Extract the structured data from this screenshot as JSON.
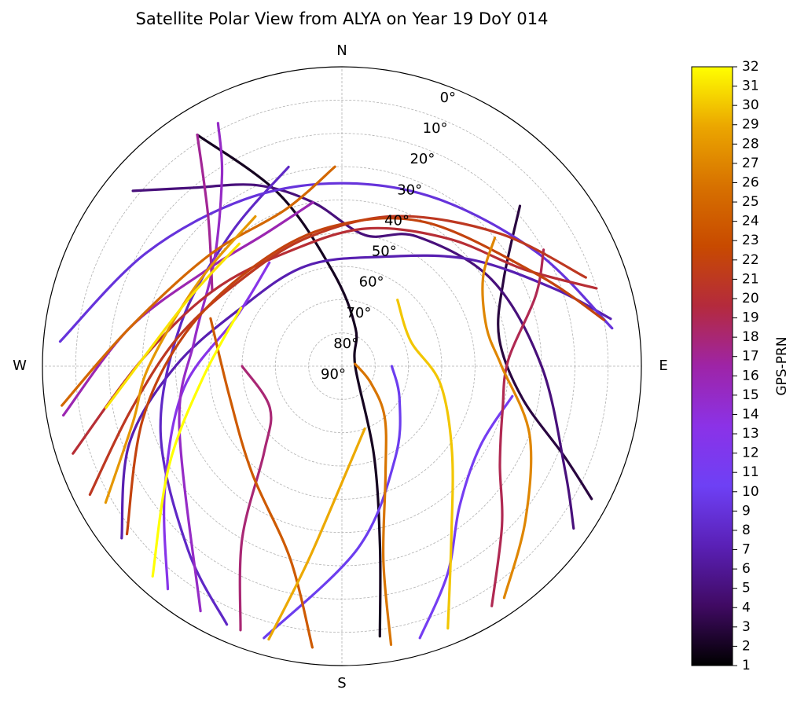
{
  "chart_data": {
    "type": "scatter",
    "projection": "polar",
    "title": "Satellite Polar View from ALYA on Year 19 DoY 014",
    "directions": [
      "N",
      "E",
      "S",
      "W"
    ],
    "radial_axis": {
      "quantity": "elevation",
      "ticks": [
        "0°",
        "10°",
        "20°",
        "30°",
        "40°",
        "50°",
        "60°",
        "70°",
        "80°",
        "90°"
      ],
      "range": [
        0,
        90
      ],
      "grid": true
    },
    "angular_axis": {
      "quantity": "azimuth",
      "zero": "N",
      "direction": "clockwise",
      "range": [
        0,
        360
      ],
      "grid": true
    },
    "colorbar": {
      "label": "GPS-PRN",
      "colormap": "gnuplot",
      "range": [
        1,
        32
      ],
      "ticks": [
        1,
        2,
        3,
        4,
        5,
        6,
        7,
        8,
        9,
        10,
        11,
        12,
        13,
        14,
        15,
        16,
        17,
        18,
        19,
        20,
        21,
        22,
        23,
        24,
        25,
        26,
        27,
        28,
        29,
        30,
        31,
        32
      ]
    },
    "series": [
      {
        "prn": 2,
        "points": [
          [
            328,
            8
          ],
          [
            340,
            35
          ],
          [
            355,
            62
          ],
          [
            20,
            78
          ],
          [
            90,
            86
          ],
          [
            160,
            62
          ],
          [
            168,
            35
          ],
          [
            172,
            8
          ]
        ]
      },
      {
        "prn": 3,
        "points": [
          [
            48,
            18
          ],
          [
            62,
            35
          ],
          [
            80,
            42
          ],
          [
            100,
            35
          ],
          [
            112,
            18
          ],
          [
            118,
            5
          ]
        ]
      },
      {
        "prn": 5,
        "points": [
          [
            310,
            8
          ],
          [
            320,
            20
          ],
          [
            335,
            30
          ],
          [
            350,
            40
          ],
          [
            10,
            50
          ],
          [
            30,
            45
          ],
          [
            60,
            38
          ],
          [
            90,
            30
          ],
          [
            115,
            16
          ],
          [
            125,
            5
          ]
        ]
      },
      {
        "prn": 7,
        "points": [
          [
            232,
            6
          ],
          [
            250,
            22
          ],
          [
            270,
            40
          ],
          [
            300,
            55
          ],
          [
            340,
            58
          ],
          [
            20,
            55
          ],
          [
            50,
            40
          ],
          [
            70,
            22
          ],
          [
            80,
            8
          ]
        ]
      },
      {
        "prn": 8,
        "points": [
          [
            204,
            5
          ],
          [
            220,
            18
          ],
          [
            250,
            32
          ],
          [
            285,
            40
          ],
          [
            320,
            38
          ],
          [
            345,
            28
          ]
        ]
      },
      {
        "prn": 9,
        "points": [
          [
            275,
            5
          ],
          [
            300,
            22
          ],
          [
            330,
            32
          ],
          [
            360,
            35
          ],
          [
            30,
            32
          ],
          [
            60,
            22
          ],
          [
            82,
            8
          ]
        ]
      },
      {
        "prn": 10,
        "points": [
          [
            196,
            5
          ],
          [
            175,
            35
          ],
          [
            150,
            58
          ],
          [
            120,
            70
          ],
          [
            90,
            75
          ]
        ]
      },
      {
        "prn": 11,
        "points": [
          [
            164,
            5
          ],
          [
            153,
            20
          ],
          [
            140,
            35
          ],
          [
            120,
            42
          ],
          [
            100,
            38
          ]
        ]
      },
      {
        "prn": 13,
        "points": [
          [
            218,
            5
          ],
          [
            235,
            25
          ],
          [
            262,
            42
          ],
          [
            295,
            55
          ],
          [
            325,
            52
          ]
        ]
      },
      {
        "prn": 15,
        "points": [
          [
            210,
            5
          ],
          [
            250,
            38
          ],
          [
            280,
            45
          ],
          [
            310,
            40
          ],
          [
            328,
            22
          ],
          [
            333,
            8
          ]
        ]
      },
      {
        "prn": 16,
        "points": [
          [
            260,
            5
          ],
          [
            280,
            25
          ],
          [
            305,
            40
          ],
          [
            330,
            44
          ],
          [
            350,
            40
          ]
        ]
      },
      {
        "prn": 17,
        "points": [
          [
            328,
            8
          ],
          [
            318,
            30
          ],
          [
            300,
            45
          ]
        ]
      },
      {
        "prn": 18,
        "points": [
          [
            201,
            5
          ],
          [
            210,
            30
          ],
          [
            222,
            55
          ],
          [
            240,
            65
          ],
          [
            270,
            60
          ]
        ]
      },
      {
        "prn": 19,
        "points": [
          [
            148,
            5
          ],
          [
            135,
            22
          ],
          [
            122,
            34
          ],
          [
            105,
            40
          ],
          [
            88,
            40
          ],
          [
            70,
            28
          ],
          [
            60,
            20
          ]
        ]
      },
      {
        "prn": 20,
        "points": [
          [
            252,
            5
          ],
          [
            272,
            30
          ],
          [
            300,
            45
          ],
          [
            335,
            52
          ],
          [
            10,
            48
          ],
          [
            40,
            40
          ],
          [
            62,
            28
          ],
          [
            73,
            10
          ]
        ]
      },
      {
        "prn": 21,
        "points": [
          [
            243,
            5
          ],
          [
            258,
            25
          ],
          [
            280,
            40
          ],
          [
            310,
            50
          ],
          [
            345,
            50
          ],
          [
            20,
            42
          ],
          [
            50,
            28
          ],
          [
            70,
            12
          ]
        ]
      },
      {
        "prn": 22,
        "points": [
          [
            232,
            8
          ],
          [
            255,
            28
          ],
          [
            282,
            42
          ],
          [
            318,
            50
          ],
          [
            355,
            48
          ],
          [
            30,
            40
          ],
          [
            65,
            25
          ],
          [
            80,
            10
          ]
        ]
      },
      {
        "prn": 24,
        "points": [
          [
            186,
            5
          ],
          [
            195,
            30
          ],
          [
            220,
            48
          ],
          [
            255,
            55
          ],
          [
            290,
            48
          ]
        ]
      },
      {
        "prn": 25,
        "points": [
          [
            262,
            5
          ],
          [
            280,
            25
          ],
          [
            310,
            38
          ],
          [
            340,
            40
          ],
          [
            358,
            30
          ]
        ]
      },
      {
        "prn": 26,
        "points": [
          [
            170,
            5
          ],
          [
            168,
            30
          ],
          [
            158,
            55
          ],
          [
            140,
            70
          ],
          [
            120,
            80
          ],
          [
            80,
            86
          ]
        ]
      },
      {
        "prn": 27,
        "points": [
          [
            50,
            30
          ],
          [
            58,
            40
          ],
          [
            75,
            45
          ],
          [
            90,
            42
          ],
          [
            110,
            30
          ],
          [
            130,
            18
          ],
          [
            145,
            5
          ]
        ]
      },
      {
        "prn": 28,
        "points": [
          [
            240,
            8
          ],
          [
            255,
            25
          ],
          [
            270,
            32
          ],
          [
            300,
            40
          ],
          [
            330,
            38
          ]
        ]
      },
      {
        "prn": 29,
        "points": [
          [
            195,
            5
          ],
          [
            190,
            30
          ],
          [
            180,
            55
          ],
          [
            160,
            70
          ]
        ]
      },
      {
        "prn": 30,
        "points": [
          [
            158,
            5
          ],
          [
            148,
            28
          ],
          [
            128,
            48
          ],
          [
            100,
            60
          ],
          [
            70,
            68
          ],
          [
            40,
            64
          ]
        ]
      },
      {
        "prn": 31,
        "points": [
          [
            260,
            18
          ],
          [
            272,
            30
          ],
          [
            295,
            40
          ],
          [
            320,
            42
          ]
        ]
      },
      {
        "prn": 32,
        "points": [
          [
            222,
            5
          ],
          [
            240,
            30
          ],
          [
            265,
            48
          ],
          [
            300,
            55
          ]
        ]
      }
    ]
  }
}
